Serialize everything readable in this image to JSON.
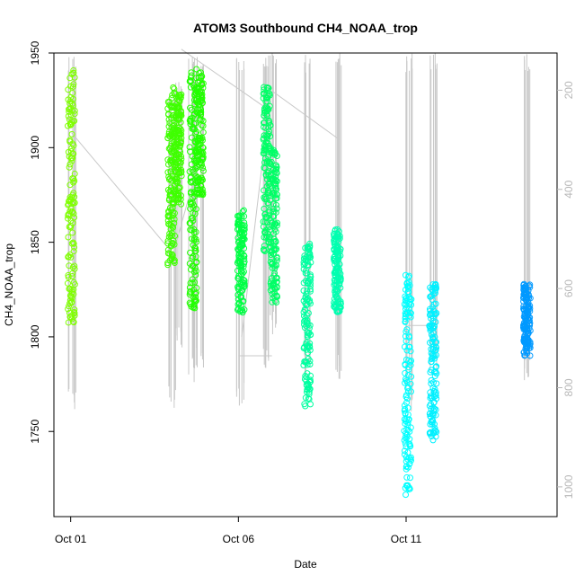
{
  "chart_data": {
    "type": "scatter",
    "title": "ATOM3 Southbound CH4_NOAA_trop",
    "xlabel": "Date",
    "ylabel": "CH4_NOAA_trop",
    "ylim": [
      1705,
      1950
    ],
    "y_ticks": [
      1750,
      1800,
      1850,
      1900,
      1950
    ],
    "x_ticks": [
      {
        "day": 1,
        "label": "Oct 01"
      },
      {
        "day": 6,
        "label": "Oct 06"
      },
      {
        "day": 11,
        "label": "Oct 11"
      }
    ],
    "xlim_days": [
      0.5,
      15.5
    ],
    "secondary_axis": {
      "side": "right",
      "reversed": true,
      "ticks": [
        200,
        400,
        600,
        800,
        1000
      ],
      "range": [
        125,
        1060
      ],
      "color": "#b8b8b8"
    },
    "grid": false,
    "legend": "none",
    "flights": [
      {
        "day": 1.02,
        "y_min": 1807,
        "y_max": 1942,
        "color": "#7FFF00",
        "press_top": 125,
        "press_bottom": 850
      },
      {
        "day": 4.0,
        "y_min": 1838,
        "y_max": 1932,
        "color": "#3FFF00",
        "press_top": 200,
        "press_bottom": 850
      },
      {
        "day": 4.2,
        "y_min": 1870,
        "y_max": 1930,
        "color": "#3FFF00",
        "press_top": 180,
        "press_bottom": 720
      },
      {
        "day": 4.65,
        "y_min": 1815,
        "y_max": 1942,
        "color": "#22FF00",
        "press_top": 125,
        "press_bottom": 790
      },
      {
        "day": 4.85,
        "y_min": 1875,
        "y_max": 1940,
        "color": "#22FF00",
        "press_top": 125,
        "press_bottom": 760
      },
      {
        "day": 6.08,
        "y_min": 1812,
        "y_max": 1867,
        "color": "#00FF44",
        "press_top": 125,
        "press_bottom": 850
      },
      {
        "day": 6.85,
        "y_min": 1845,
        "y_max": 1932,
        "color": "#00FF66",
        "press_top": 125,
        "press_bottom": 780
      },
      {
        "day": 7.05,
        "y_min": 1818,
        "y_max": 1900,
        "color": "#00FF66",
        "press_top": 125,
        "press_bottom": 700
      },
      {
        "day": 8.05,
        "y_min": 1763,
        "y_max": 1850,
        "color": "#00FFA0",
        "press_top": 125,
        "press_bottom": 790
      },
      {
        "day": 8.95,
        "y_min": 1813,
        "y_max": 1857,
        "color": "#00FFB0",
        "press_top": 125,
        "press_bottom": 790
      },
      {
        "day": 11.05,
        "y_min": 1716,
        "y_max": 1833,
        "color": "#00FFFF",
        "press_top": 125,
        "press_bottom": 850
      },
      {
        "day": 11.8,
        "y_min": 1745,
        "y_max": 1828,
        "color": "#00F0FF",
        "press_top": 125,
        "press_bottom": 780
      },
      {
        "day": 14.6,
        "y_min": 1790,
        "y_max": 1828,
        "color": "#0099FF",
        "press_top": 125,
        "press_bottom": 790
      }
    ]
  }
}
